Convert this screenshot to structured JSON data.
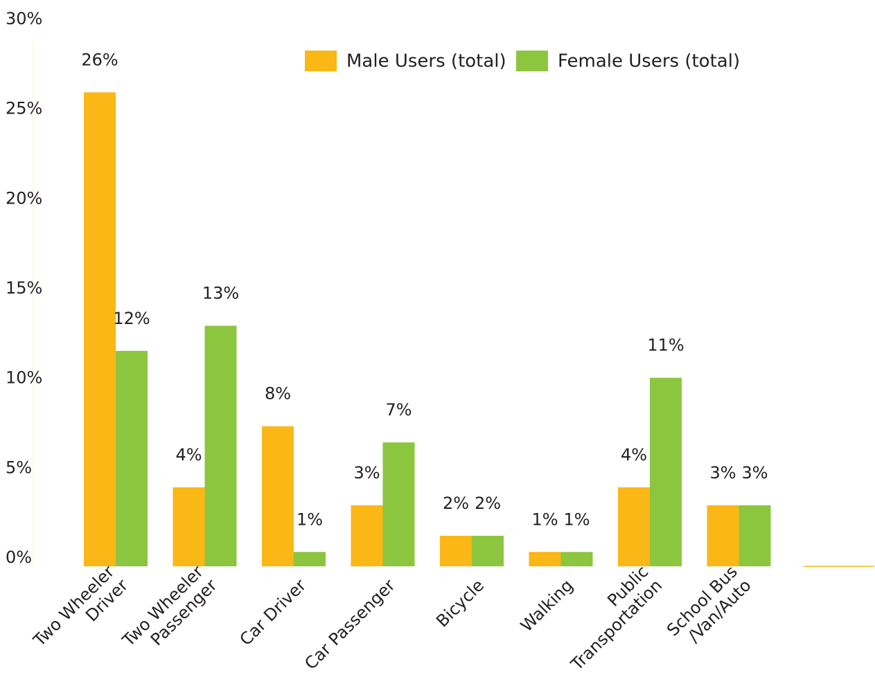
{
  "chart_data": {
    "type": "bar",
    "categories": [
      "Two Wheeler\nDriver",
      "Two Wheeler\nPassenger",
      "Car Driver",
      "Car Passenger",
      "Bicycle",
      "Walking",
      "Public\nTransportation",
      "School Bus\n/Van/Auto"
    ],
    "series": [
      {
        "name": "Male Users (total)",
        "color": "#fbb716",
        "values": [
          26.4,
          4.4,
          7.8,
          3.4,
          1.7,
          0.8,
          4.4,
          3.4
        ],
        "value_labels": [
          "26%",
          "4%",
          "8%",
          "3%",
          "2%",
          "1%",
          "4%",
          "3%"
        ]
      },
      {
        "name": "Female Users (total)",
        "color": "#8cc63f",
        "values": [
          12.0,
          13.4,
          0.8,
          6.9,
          1.7,
          0.8,
          10.5,
          3.4
        ],
        "value_labels": [
          "12%",
          "13%",
          "1%",
          "7%",
          "2%",
          "1%",
          "11%",
          "3%"
        ]
      }
    ],
    "ylim": [
      0,
      30
    ],
    "yticks": [
      {
        "value": 0,
        "label": "0%"
      },
      {
        "value": 5,
        "label": "5%"
      },
      {
        "value": 10,
        "label": "10%"
      },
      {
        "value": 15,
        "label": "15%"
      },
      {
        "value": 20,
        "label": "20%"
      },
      {
        "value": 25,
        "label": "25%"
      },
      {
        "value": 30,
        "label": "30%"
      }
    ],
    "grid": false,
    "legend": "top"
  }
}
